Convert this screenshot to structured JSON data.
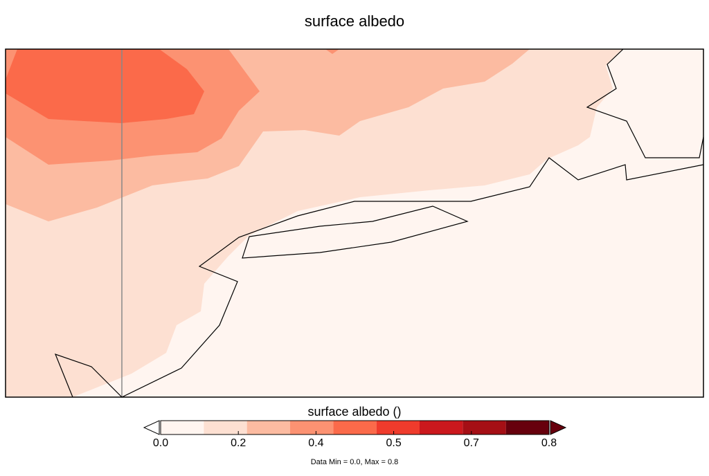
{
  "title": "surface albedo",
  "colorbar": {
    "label": "surface albedo ()",
    "tick_labels": [
      "0.0",
      "0.2",
      "0.4",
      "0.5",
      "0.7",
      "0.8"
    ],
    "tick_values": [
      0.0,
      0.2,
      0.4,
      0.5,
      0.7,
      0.8
    ],
    "bins": [
      {
        "min": 0.0,
        "max": 0.1,
        "color": "#fff5f0"
      },
      {
        "min": 0.1,
        "max": 0.2,
        "color": "#fde0d2"
      },
      {
        "min": 0.2,
        "max": 0.3,
        "color": "#fcbba1"
      },
      {
        "min": 0.3,
        "max": 0.4,
        "color": "#fc9272"
      },
      {
        "min": 0.4,
        "max": 0.5,
        "color": "#fb6a4a"
      },
      {
        "min": 0.5,
        "max": 0.6,
        "color": "#ef3b2c"
      },
      {
        "min": 0.6,
        "max": 0.7,
        "color": "#cb181d"
      },
      {
        "min": 0.7,
        "max": 0.8,
        "color": "#a50f15"
      },
      {
        "min": 0.8,
        "max": 0.9,
        "color": "#67000d"
      }
    ],
    "extend_low_color": "#ffffff",
    "extend_high_color": "#67000d"
  },
  "data_range_text": "Data Min = 0.0, Max = 0.8",
  "chart_data": {
    "type": "heatmap",
    "title": "surface albedo",
    "colorbar_label": "surface albedo ()",
    "data_min": 0.0,
    "data_max": 0.8,
    "levels": [
      0.0,
      0.1,
      0.2,
      0.3,
      0.4,
      0.5,
      0.6,
      0.7,
      0.8,
      0.9
    ],
    "regions_by_level": [
      {
        "level_range": [
          0.0,
          0.1
        ],
        "description": "ocean / southeast area"
      },
      {
        "level_range": [
          0.1,
          0.2
        ],
        "description": "broad band across the middle"
      },
      {
        "level_range": [
          0.2,
          0.3
        ],
        "description": "northern and western land"
      },
      {
        "level_range": [
          0.3,
          0.4
        ],
        "description": "northwest"
      },
      {
        "level_range": [
          0.4,
          0.5
        ],
        "description": "far northwest maximum"
      }
    ]
  }
}
